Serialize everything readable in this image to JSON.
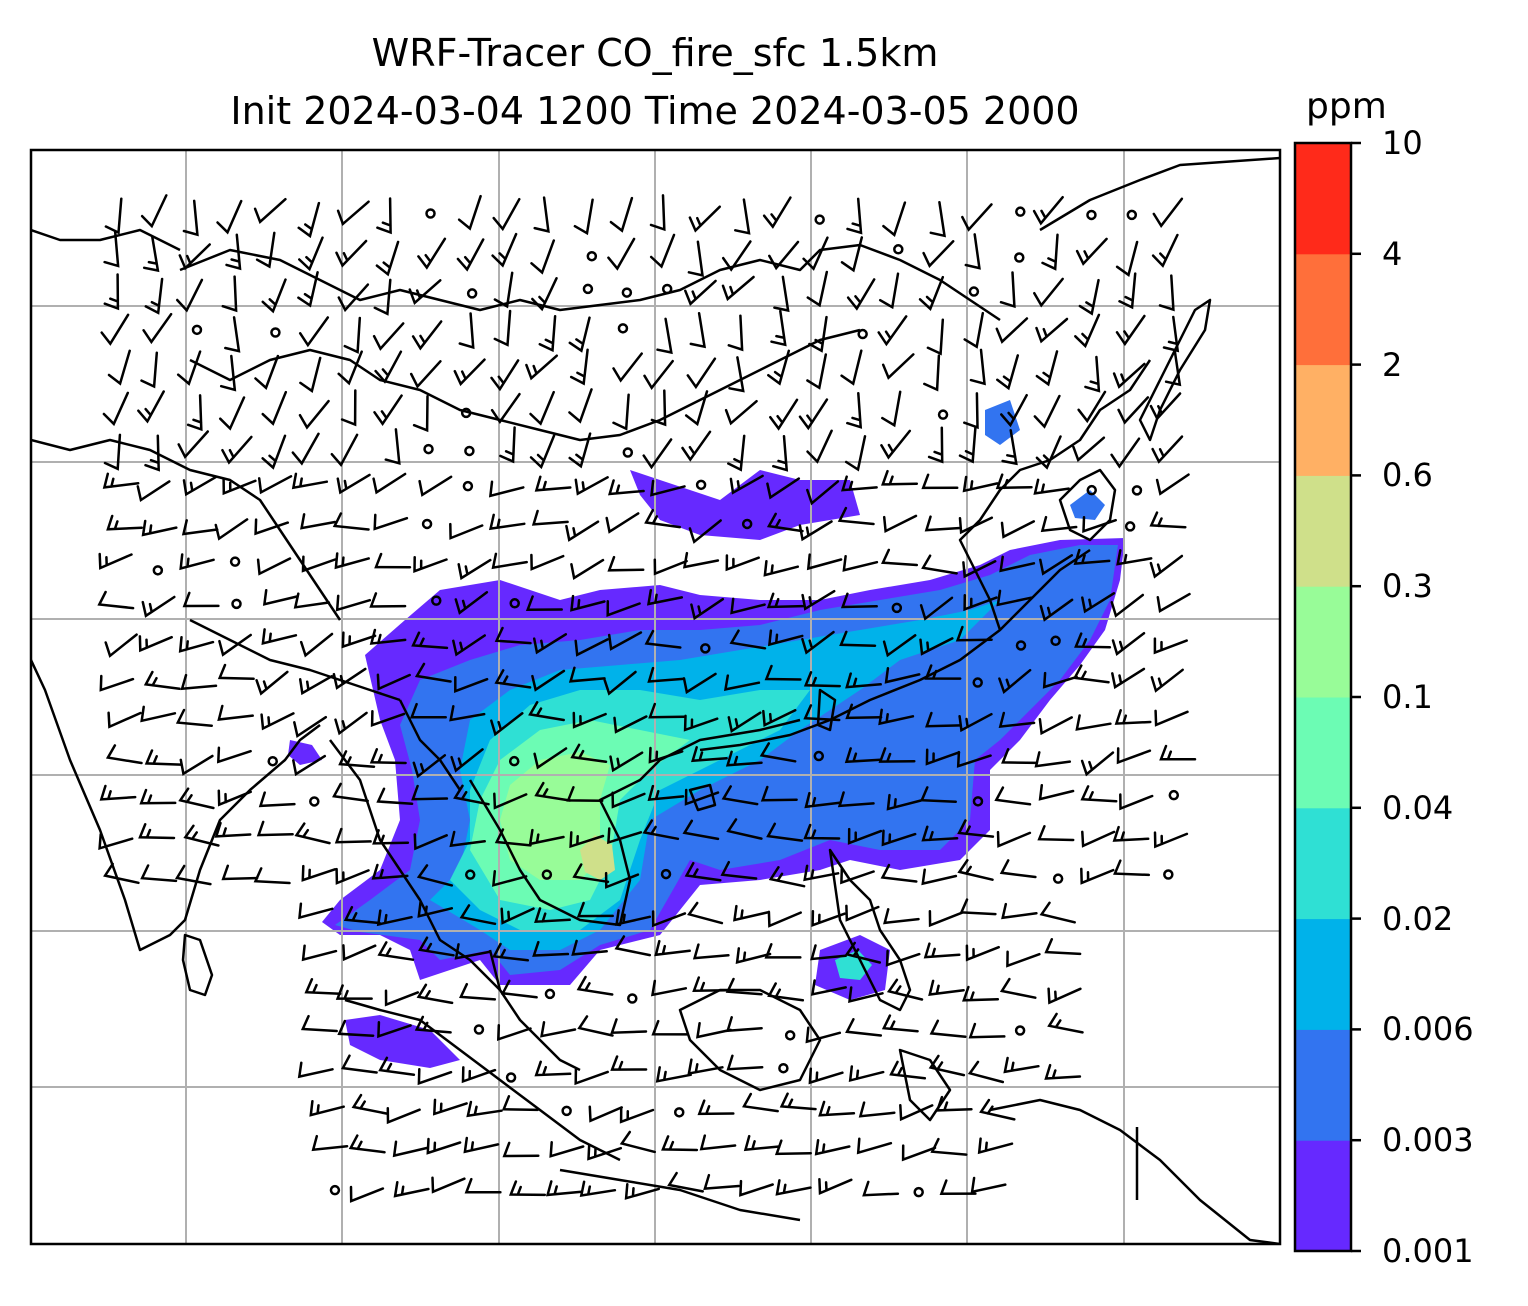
{
  "title": {
    "line1": "WRF-Tracer CO_fire_sfc 1.5km",
    "line2": "Init 2024-03-04 1200 Time 2024-03-05 2000"
  },
  "map": {
    "grid": true,
    "grid_color": "#b0b0b0",
    "coastline_color": "#000000",
    "wind_barbs": true,
    "region": "East and Southeast Asia"
  },
  "colorbar": {
    "unit": "ppm",
    "tick_labels": [
      "0.001",
      "0.003",
      "0.006",
      "0.02",
      "0.04",
      "0.1",
      "0.3",
      "0.6",
      "2",
      "4",
      "10"
    ],
    "colors": [
      "#6629ff",
      "#3274f0",
      "#00b2ea",
      "#2fe0d4",
      "#6cfcb4",
      "#98fc98",
      "#cfe08a",
      "#ffb064",
      "#ff6f3a",
      "#ff2a1a"
    ]
  },
  "chart_data": {
    "type": "heatmap",
    "title": "WRF-Tracer CO_fire_sfc 1.5km\nInit 2024-03-04 1200 Time 2024-03-05 2000",
    "colorbar_label": "ppm",
    "levels": [
      0.001,
      0.003,
      0.006,
      0.02,
      0.04,
      0.1,
      0.3,
      0.6,
      2,
      4,
      10
    ],
    "max_observed_level_band": [
      0.3,
      0.6
    ]
  }
}
